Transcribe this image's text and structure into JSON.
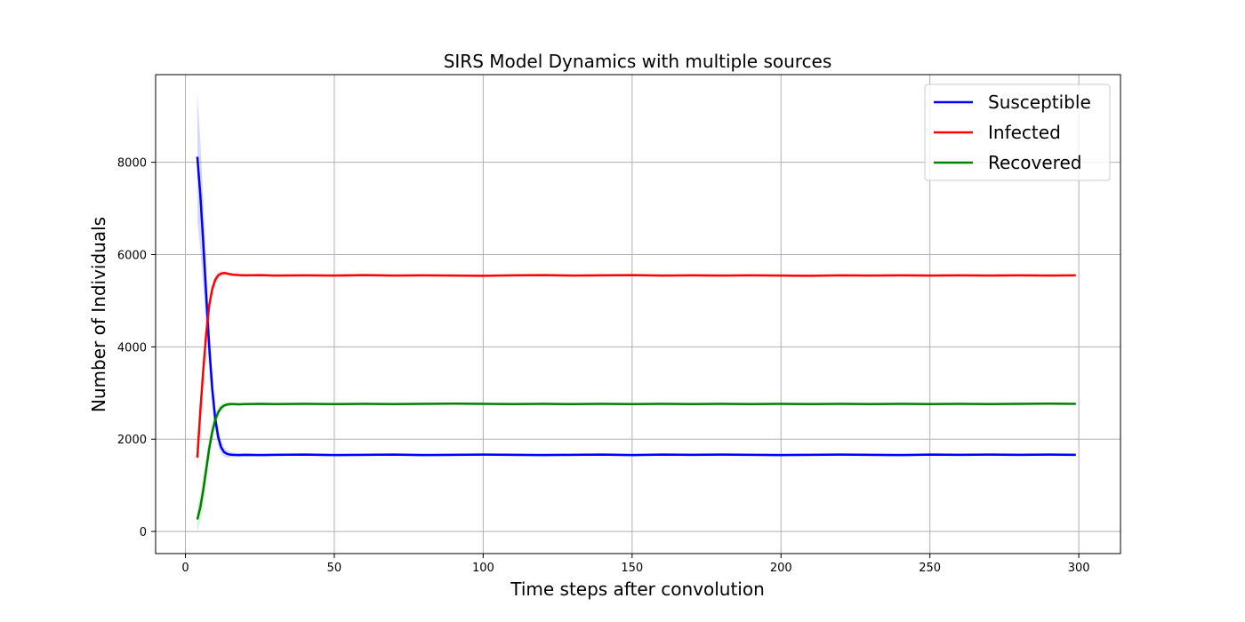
{
  "chart_data": {
    "type": "line",
    "title": "SIRS Model Dynamics with multiple sources",
    "xlabel": "Time steps after convolution",
    "ylabel": "Number of Individuals",
    "xlim": [
      -10,
      314
    ],
    "ylim": [
      -480,
      9900
    ],
    "xticks": [
      0,
      50,
      100,
      150,
      200,
      250,
      300
    ],
    "yticks": [
      0,
      2000,
      4000,
      6000,
      8000
    ],
    "grid": true,
    "legend_position": "top-right",
    "series": [
      {
        "name": "Susceptible",
        "color": "#0000ff",
        "band_color": "#0000ff",
        "x": [
          4,
          5,
          6,
          7,
          8,
          9,
          10,
          11,
          12,
          13,
          14,
          15,
          16,
          18,
          20,
          25,
          30,
          40,
          50,
          60,
          70,
          80,
          90,
          100,
          110,
          120,
          130,
          140,
          150,
          160,
          170,
          180,
          190,
          200,
          210,
          220,
          230,
          240,
          250,
          260,
          270,
          280,
          290,
          299
        ],
        "values": [
          8120,
          7300,
          6250,
          5100,
          4000,
          3100,
          2450,
          2050,
          1820,
          1720,
          1680,
          1665,
          1660,
          1655,
          1660,
          1655,
          1660,
          1665,
          1655,
          1660,
          1665,
          1655,
          1660,
          1665,
          1660,
          1655,
          1660,
          1665,
          1655,
          1665,
          1660,
          1665,
          1660,
          1655,
          1660,
          1665,
          1660,
          1655,
          1665,
          1660,
          1665,
          1660,
          1665,
          1660
        ],
        "band": [
          1400,
          1200,
          950,
          750,
          550,
          400,
          280,
          200,
          140,
          100,
          80,
          60,
          50,
          40,
          35,
          30,
          30,
          30,
          30,
          30,
          30,
          30,
          30,
          30,
          30,
          30,
          30,
          30,
          30,
          30,
          30,
          30,
          30,
          30,
          30,
          30,
          30,
          30,
          30,
          30,
          30,
          30,
          30,
          30
        ]
      },
      {
        "name": "Infected",
        "color": "#ff0000",
        "band_color": "#ff0000",
        "x": [
          4,
          5,
          6,
          7,
          8,
          9,
          10,
          11,
          12,
          13,
          14,
          15,
          16,
          18,
          20,
          25,
          30,
          40,
          50,
          60,
          70,
          80,
          90,
          100,
          110,
          120,
          130,
          140,
          150,
          160,
          170,
          180,
          190,
          200,
          210,
          220,
          230,
          240,
          250,
          260,
          270,
          280,
          290,
          299
        ],
        "values": [
          1600,
          2600,
          3500,
          4300,
          4900,
          5250,
          5450,
          5550,
          5590,
          5600,
          5590,
          5575,
          5565,
          5555,
          5550,
          5555,
          5545,
          5550,
          5545,
          5555,
          5545,
          5550,
          5545,
          5540,
          5550,
          5555,
          5545,
          5550,
          5555,
          5545,
          5550,
          5545,
          5550,
          5545,
          5540,
          5550,
          5545,
          5550,
          5545,
          5550,
          5545,
          5550,
          5545,
          5550
        ],
        "band": [
          300,
          280,
          250,
          200,
          150,
          110,
          80,
          60,
          50,
          40,
          35,
          30,
          28,
          25,
          25,
          25,
          25,
          25,
          25,
          25,
          25,
          25,
          25,
          25,
          25,
          25,
          25,
          25,
          25,
          25,
          25,
          25,
          25,
          25,
          25,
          25,
          25,
          25,
          25,
          25,
          25,
          25,
          25,
          25
        ]
      },
      {
        "name": "Recovered",
        "color": "#008000",
        "band_color": "#00a000",
        "x": [
          4,
          5,
          6,
          7,
          8,
          9,
          10,
          11,
          12,
          13,
          14,
          15,
          16,
          18,
          20,
          25,
          30,
          40,
          50,
          60,
          70,
          80,
          90,
          100,
          110,
          120,
          130,
          140,
          150,
          160,
          170,
          180,
          190,
          200,
          210,
          220,
          230,
          240,
          250,
          260,
          270,
          280,
          290,
          299
        ],
        "values": [
          260,
          520,
          900,
          1350,
          1800,
          2150,
          2420,
          2580,
          2680,
          2730,
          2750,
          2760,
          2760,
          2755,
          2760,
          2765,
          2760,
          2765,
          2760,
          2765,
          2760,
          2765,
          2770,
          2765,
          2760,
          2765,
          2760,
          2765,
          2760,
          2765,
          2760,
          2765,
          2760,
          2765,
          2760,
          2765,
          2760,
          2765,
          2760,
          2765,
          2760,
          2765,
          2770,
          2765
        ],
        "band": [
          280,
          300,
          320,
          300,
          260,
          200,
          150,
          110,
          80,
          60,
          45,
          35,
          30,
          25,
          25,
          25,
          25,
          25,
          25,
          25,
          25,
          25,
          25,
          25,
          25,
          25,
          25,
          25,
          25,
          25,
          25,
          25,
          25,
          25,
          25,
          25,
          25,
          25,
          25,
          25,
          25,
          25,
          25,
          25
        ]
      }
    ]
  }
}
